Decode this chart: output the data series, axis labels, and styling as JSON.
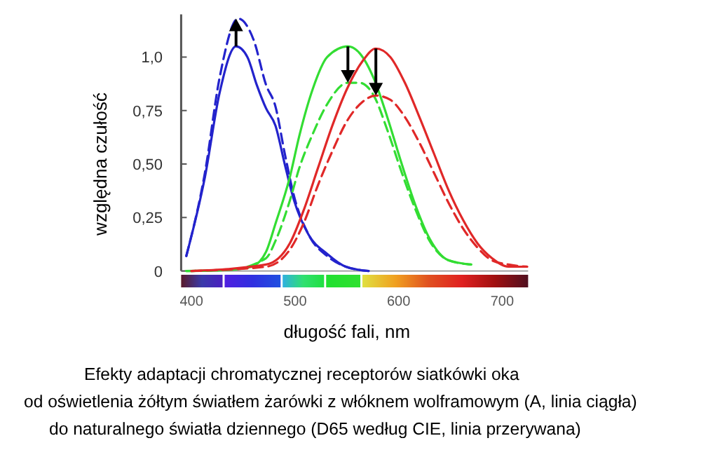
{
  "chart_data": {
    "type": "line",
    "xlabel": "długość fali, nm",
    "ylabel": "względna czułość",
    "xlim": [
      390,
      725
    ],
    "ylim": [
      0,
      1.2
    ],
    "xticks": [
      400,
      500,
      600,
      700
    ],
    "yticks": [
      {
        "value": 0,
        "label": "0"
      },
      {
        "value": 0.25,
        "label": "0,25"
      },
      {
        "value": 0.5,
        "label": "0,50"
      },
      {
        "value": 0.75,
        "label": "0,75"
      },
      {
        "value": 1,
        "label": "1,0"
      }
    ],
    "series": [
      {
        "color": "#2323cc",
        "line_style": "solid",
        "x": [
          395,
          413,
          427,
          443,
          454,
          463,
          472,
          481,
          490,
          499,
          513,
          531,
          549,
          571
        ],
        "values": [
          0.07,
          0.44,
          0.83,
          1.05,
          1.0,
          0.87,
          0.76,
          0.68,
          0.5,
          0.33,
          0.17,
          0.08,
          0.02,
          0
        ]
      },
      {
        "color": "#2323cc",
        "line_style": "dashed",
        "x": [
          395,
          413,
          427,
          445,
          460,
          472,
          481,
          490,
          499,
          513,
          531,
          549,
          571
        ],
        "values": [
          0.07,
          0.46,
          0.9,
          1.18,
          1.08,
          0.87,
          0.77,
          0.55,
          0.35,
          0.17,
          0.07,
          0.02,
          0
        ]
      },
      {
        "color": "#33dd33",
        "line_style": "solid",
        "x": [
          395,
          436,
          458,
          472,
          481,
          495,
          504,
          517,
          531,
          551,
          562,
          576,
          589,
          603,
          616,
          630,
          648,
          670
        ],
        "values": [
          0,
          0.005,
          0.02,
          0.09,
          0.22,
          0.44,
          0.63,
          0.85,
          1.0,
          1.05,
          1.02,
          0.9,
          0.72,
          0.5,
          0.31,
          0.15,
          0.05,
          0.03
        ]
      },
      {
        "color": "#33dd33",
        "line_style": "dashed",
        "x": [
          395,
          436,
          472,
          481,
          495,
          504,
          517,
          531,
          551,
          562,
          576,
          589,
          603,
          616,
          630,
          648,
          670
        ],
        "values": [
          0,
          0.005,
          0.06,
          0.14,
          0.33,
          0.48,
          0.64,
          0.78,
          0.88,
          0.88,
          0.82,
          0.66,
          0.46,
          0.29,
          0.14,
          0.05,
          0.03
        ]
      },
      {
        "color": "#e02828",
        "line_style": "solid",
        "x": [
          400,
          472,
          495,
          508,
          522,
          536,
          550,
          565,
          578,
          592,
          606,
          620,
          634,
          648,
          662,
          676,
          690,
          706,
          724
        ],
        "values": [
          0,
          0.03,
          0.13,
          0.28,
          0.48,
          0.68,
          0.85,
          0.98,
          1.04,
          1.0,
          0.88,
          0.72,
          0.55,
          0.38,
          0.24,
          0.13,
          0.06,
          0.02,
          0.02
        ]
      },
      {
        "color": "#e02828",
        "line_style": "dashed",
        "x": [
          400,
          472,
          495,
          508,
          522,
          536,
          550,
          565,
          578,
          592,
          606,
          620,
          634,
          648,
          662,
          676,
          690,
          706,
          724
        ],
        "values": [
          0,
          0.02,
          0.1,
          0.22,
          0.4,
          0.56,
          0.7,
          0.79,
          0.82,
          0.8,
          0.72,
          0.6,
          0.46,
          0.32,
          0.2,
          0.11,
          0.05,
          0.03,
          0.02
        ]
      }
    ],
    "annotations": [
      "Efekty adaptacji chromatycznej receptorów siatkówki oka",
      "od oświetlenia żółtym światłem żarówki z włóknem wolframowym  (A, linia ciągła)",
      "do naturalnego światła dziennego (D65 według CIE, linia przerywana)"
    ]
  }
}
